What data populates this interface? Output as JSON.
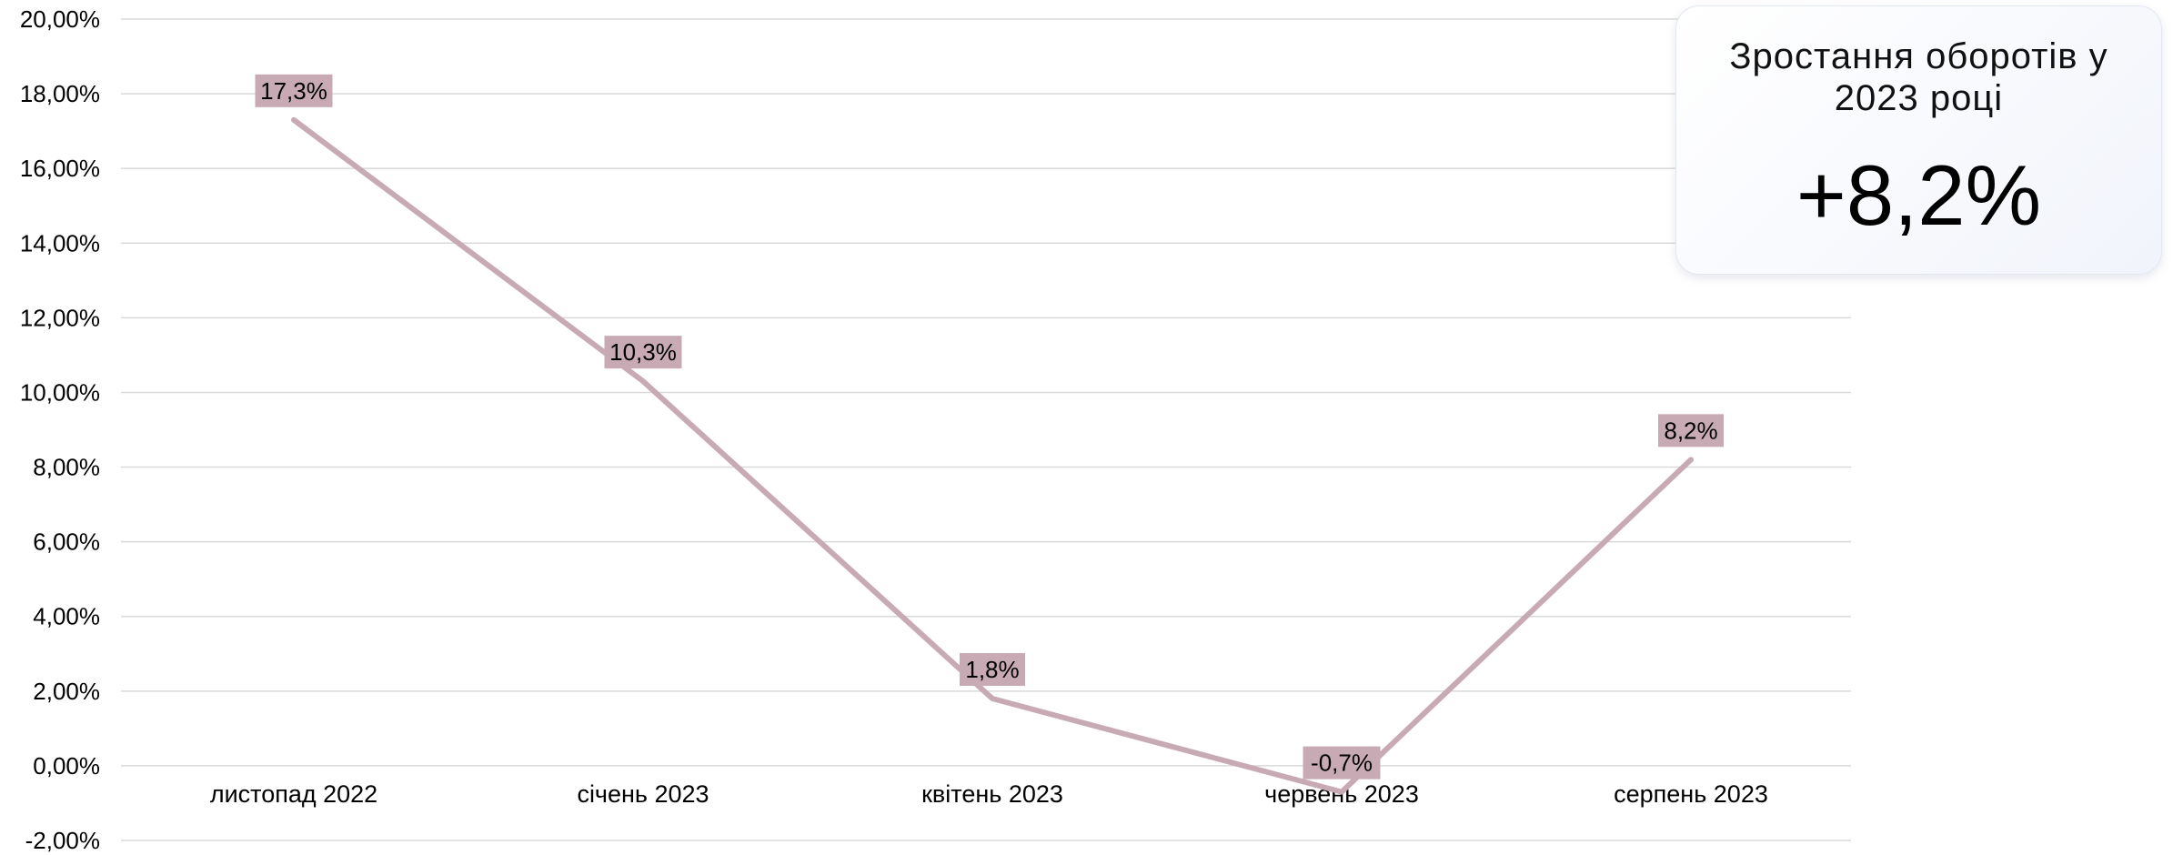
{
  "chart_data": {
    "type": "line",
    "categories": [
      "листопад 2022",
      "січень 2023",
      "квітень 2023",
      "червень 2023",
      "серпень 2023"
    ],
    "series": [
      {
        "values": [
          17.3,
          10.3,
          1.8,
          -0.7,
          8.2
        ],
        "data_labels": [
          "17,3%",
          "10,3%",
          "1,8%",
          "-0,7%",
          "8,2%"
        ],
        "color": "#c8aab5"
      }
    ],
    "yticks": [
      -2,
      0,
      2,
      4,
      6,
      8,
      10,
      12,
      14,
      16,
      18,
      20
    ],
    "ytick_labels": [
      "-2,00%",
      "0,00%",
      "2,00%",
      "4,00%",
      "6,00%",
      "8,00%",
      "10,00%",
      "12,00%",
      "14,00%",
      "16,00%",
      "18,00%",
      "20,00%"
    ],
    "ylim": [
      -2,
      20
    ],
    "grid": true,
    "title": "",
    "xlabel": "",
    "ylabel": ""
  },
  "summary_card": {
    "title": "Зростання оборотів у 2023 році",
    "value": "+8,2%"
  },
  "colors": {
    "line": "#c8aab5",
    "label_bg": "#c8aab5",
    "grid": "#d9d9d9"
  }
}
